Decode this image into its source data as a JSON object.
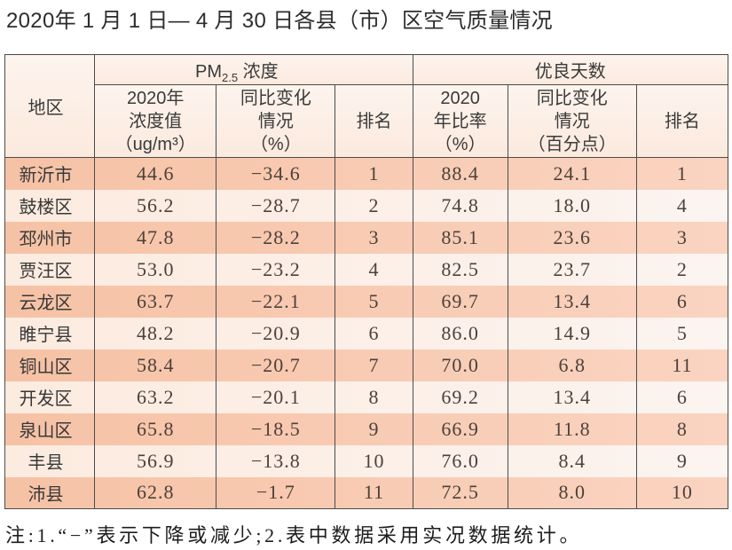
{
  "title": "2020年 1 月 1 日— 4 月 30 日各县（市）区空气质量情况",
  "table": {
    "header": {
      "region": "地区",
      "pm25_group": {
        "pre": "PM",
        "sub": "2.5",
        "post": " 浓度"
      },
      "good_days_group": "优良天数",
      "detail_cols": [
        {
          "key": "pm25-value",
          "lines": [
            "2020年",
            "浓度值",
            "（ug/m³）"
          ]
        },
        {
          "key": "pm25-change",
          "lines": [
            "同比变化",
            "情况",
            "（%）"
          ]
        },
        {
          "key": "pm25-rank",
          "lines": [
            "排名"
          ]
        },
        {
          "key": "good-rate",
          "lines": [
            "2020",
            "年比率",
            "（%）"
          ]
        },
        {
          "key": "good-change",
          "lines": [
            "同比变化",
            "情况",
            "（百分点）"
          ]
        },
        {
          "key": "good-rank",
          "lines": [
            "排名"
          ]
        }
      ]
    },
    "column_keys": [
      "region",
      "pm25-value",
      "pm25-change",
      "pm25-rank",
      "good-rate",
      "good-change",
      "good-rank"
    ],
    "rows": [
      [
        "新沂市",
        "44.6",
        "−34.6",
        "1",
        "88.4",
        "24.1",
        "1"
      ],
      [
        "鼓楼区",
        "56.2",
        "−28.7",
        "2",
        "74.8",
        "18.0",
        "4"
      ],
      [
        "邳州市",
        "47.8",
        "−28.2",
        "3",
        "85.1",
        "23.6",
        "3"
      ],
      [
        "贾汪区",
        "53.0",
        "−23.2",
        "4",
        "82.5",
        "23.7",
        "2"
      ],
      [
        "云龙区",
        "63.7",
        "−22.1",
        "5",
        "69.7",
        "13.4",
        "6"
      ],
      [
        "睢宁县",
        "48.2",
        "−20.9",
        "6",
        "86.0",
        "14.9",
        "5"
      ],
      [
        "铜山区",
        "58.4",
        "−20.7",
        "7",
        "70.0",
        "6.8",
        "11"
      ],
      [
        "开发区",
        "63.2",
        "−20.1",
        "8",
        "69.2",
        "13.4",
        "6"
      ],
      [
        "泉山区",
        "65.8",
        "−18.5",
        "9",
        "66.9",
        "11.8",
        "8"
      ],
      [
        "丰县",
        "56.9",
        "−13.8",
        "10",
        "76.0",
        "8.4",
        "9"
      ],
      [
        "沛县",
        "62.8",
        "−1.7",
        "11",
        "72.5",
        "8.0",
        "10"
      ]
    ]
  },
  "footnote": "注:1.“−”表示下降或减少;2.表中数据采用实况数据统计。",
  "colors": {
    "row_odd": "#f8c9ae",
    "row_even": "#fcefe7",
    "header_bg": "#fcefe5",
    "border": "#4c4c4c",
    "title_text": "#2d2d2d",
    "number_text": "#4c413b"
  }
}
